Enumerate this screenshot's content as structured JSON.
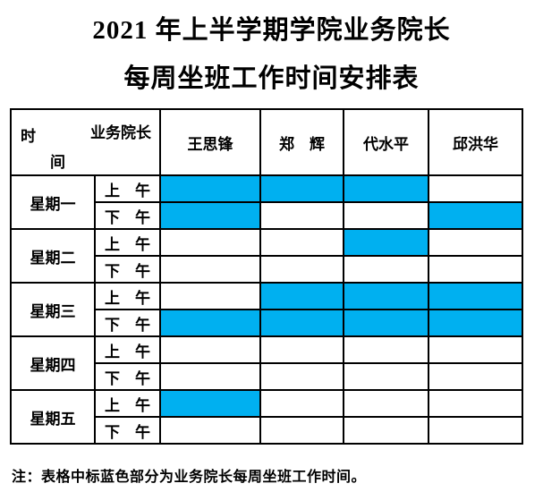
{
  "title": {
    "line1": "2021 年上半学期学院业务院长",
    "line2": "每周坐班工作时间安排表"
  },
  "table": {
    "corner": {
      "top_right": "业务院长",
      "left_top": "时",
      "left_bottom": "间"
    },
    "columns": [
      "王思锋",
      "郑　辉",
      "代水平",
      "邱洪华"
    ],
    "days": [
      {
        "label": "星期一",
        "periods": [
          {
            "label": "上　午",
            "cells": [
              true,
              true,
              true,
              false
            ]
          },
          {
            "label": "下　午",
            "cells": [
              true,
              false,
              false,
              true
            ]
          }
        ]
      },
      {
        "label": "星期二",
        "periods": [
          {
            "label": "上　午",
            "cells": [
              false,
              false,
              true,
              false
            ]
          },
          {
            "label": "下　午",
            "cells": [
              false,
              false,
              false,
              false
            ]
          }
        ]
      },
      {
        "label": "星期三",
        "periods": [
          {
            "label": "上　午",
            "cells": [
              false,
              true,
              true,
              true
            ]
          },
          {
            "label": "下　午",
            "cells": [
              true,
              true,
              true,
              true
            ]
          }
        ]
      },
      {
        "label": "星期四",
        "periods": [
          {
            "label": "上　午",
            "cells": [
              false,
              false,
              false,
              false
            ]
          },
          {
            "label": "下　午",
            "cells": [
              false,
              false,
              false,
              false
            ]
          }
        ]
      },
      {
        "label": "星期五",
        "periods": [
          {
            "label": "上　午",
            "cells": [
              true,
              false,
              false,
              false
            ]
          },
          {
            "label": "下　午",
            "cells": [
              false,
              false,
              false,
              false
            ]
          }
        ]
      }
    ]
  },
  "note": "注：表格中标蓝色部分为业务院长每周坐班工作时间。",
  "colors": {
    "highlight": "#00B0F0",
    "border": "#000000",
    "text": "#000000",
    "background": "#FFFFFF"
  }
}
